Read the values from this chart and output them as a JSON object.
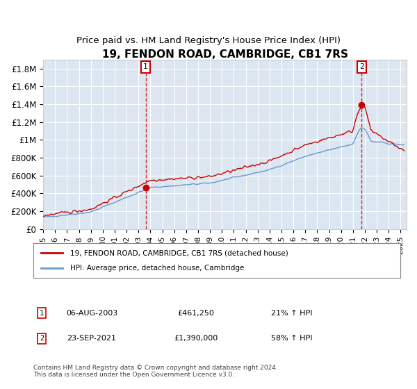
{
  "title": "19, FENDON ROAD, CAMBRIDGE, CB1 7RS",
  "subtitle": "Price paid vs. HM Land Registry's House Price Index (HPI)",
  "ylabel_ticks": [
    "£0",
    "£200K",
    "£400K",
    "£600K",
    "£800K",
    "£1M",
    "£1.2M",
    "£1.4M",
    "£1.6M",
    "£1.8M"
  ],
  "ytick_values": [
    0,
    200000,
    400000,
    600000,
    800000,
    1000000,
    1200000,
    1400000,
    1600000,
    1800000
  ],
  "ylim": [
    0,
    1900000
  ],
  "xlim_start": 1995.0,
  "xlim_end": 2025.5,
  "marker1_x": 2003.6,
  "marker1_y": 461250,
  "marker2_x": 2021.73,
  "marker2_y": 1390000,
  "sale1_date": "06-AUG-2003",
  "sale1_price": "£461,250",
  "sale1_hpi": "21% ↑ HPI",
  "sale2_date": "23-SEP-2021",
  "sale2_price": "£1,390,000",
  "sale2_hpi": "58% ↑ HPI",
  "legend_house": "19, FENDON ROAD, CAMBRIDGE, CB1 7RS (detached house)",
  "legend_hpi": "HPI: Average price, detached house, Cambridge",
  "footnote": "Contains HM Land Registry data © Crown copyright and database right 2024.\nThis data is licensed under the Open Government Licence v3.0.",
  "house_color": "#cc0000",
  "hpi_color": "#6699cc",
  "bg_color": "#dce6f1",
  "plot_bg": "#dce6f1",
  "title_fontsize": 11,
  "subtitle_fontsize": 9.5,
  "marker_color": "#cc0000",
  "dashed_line_color": "#cc0000"
}
